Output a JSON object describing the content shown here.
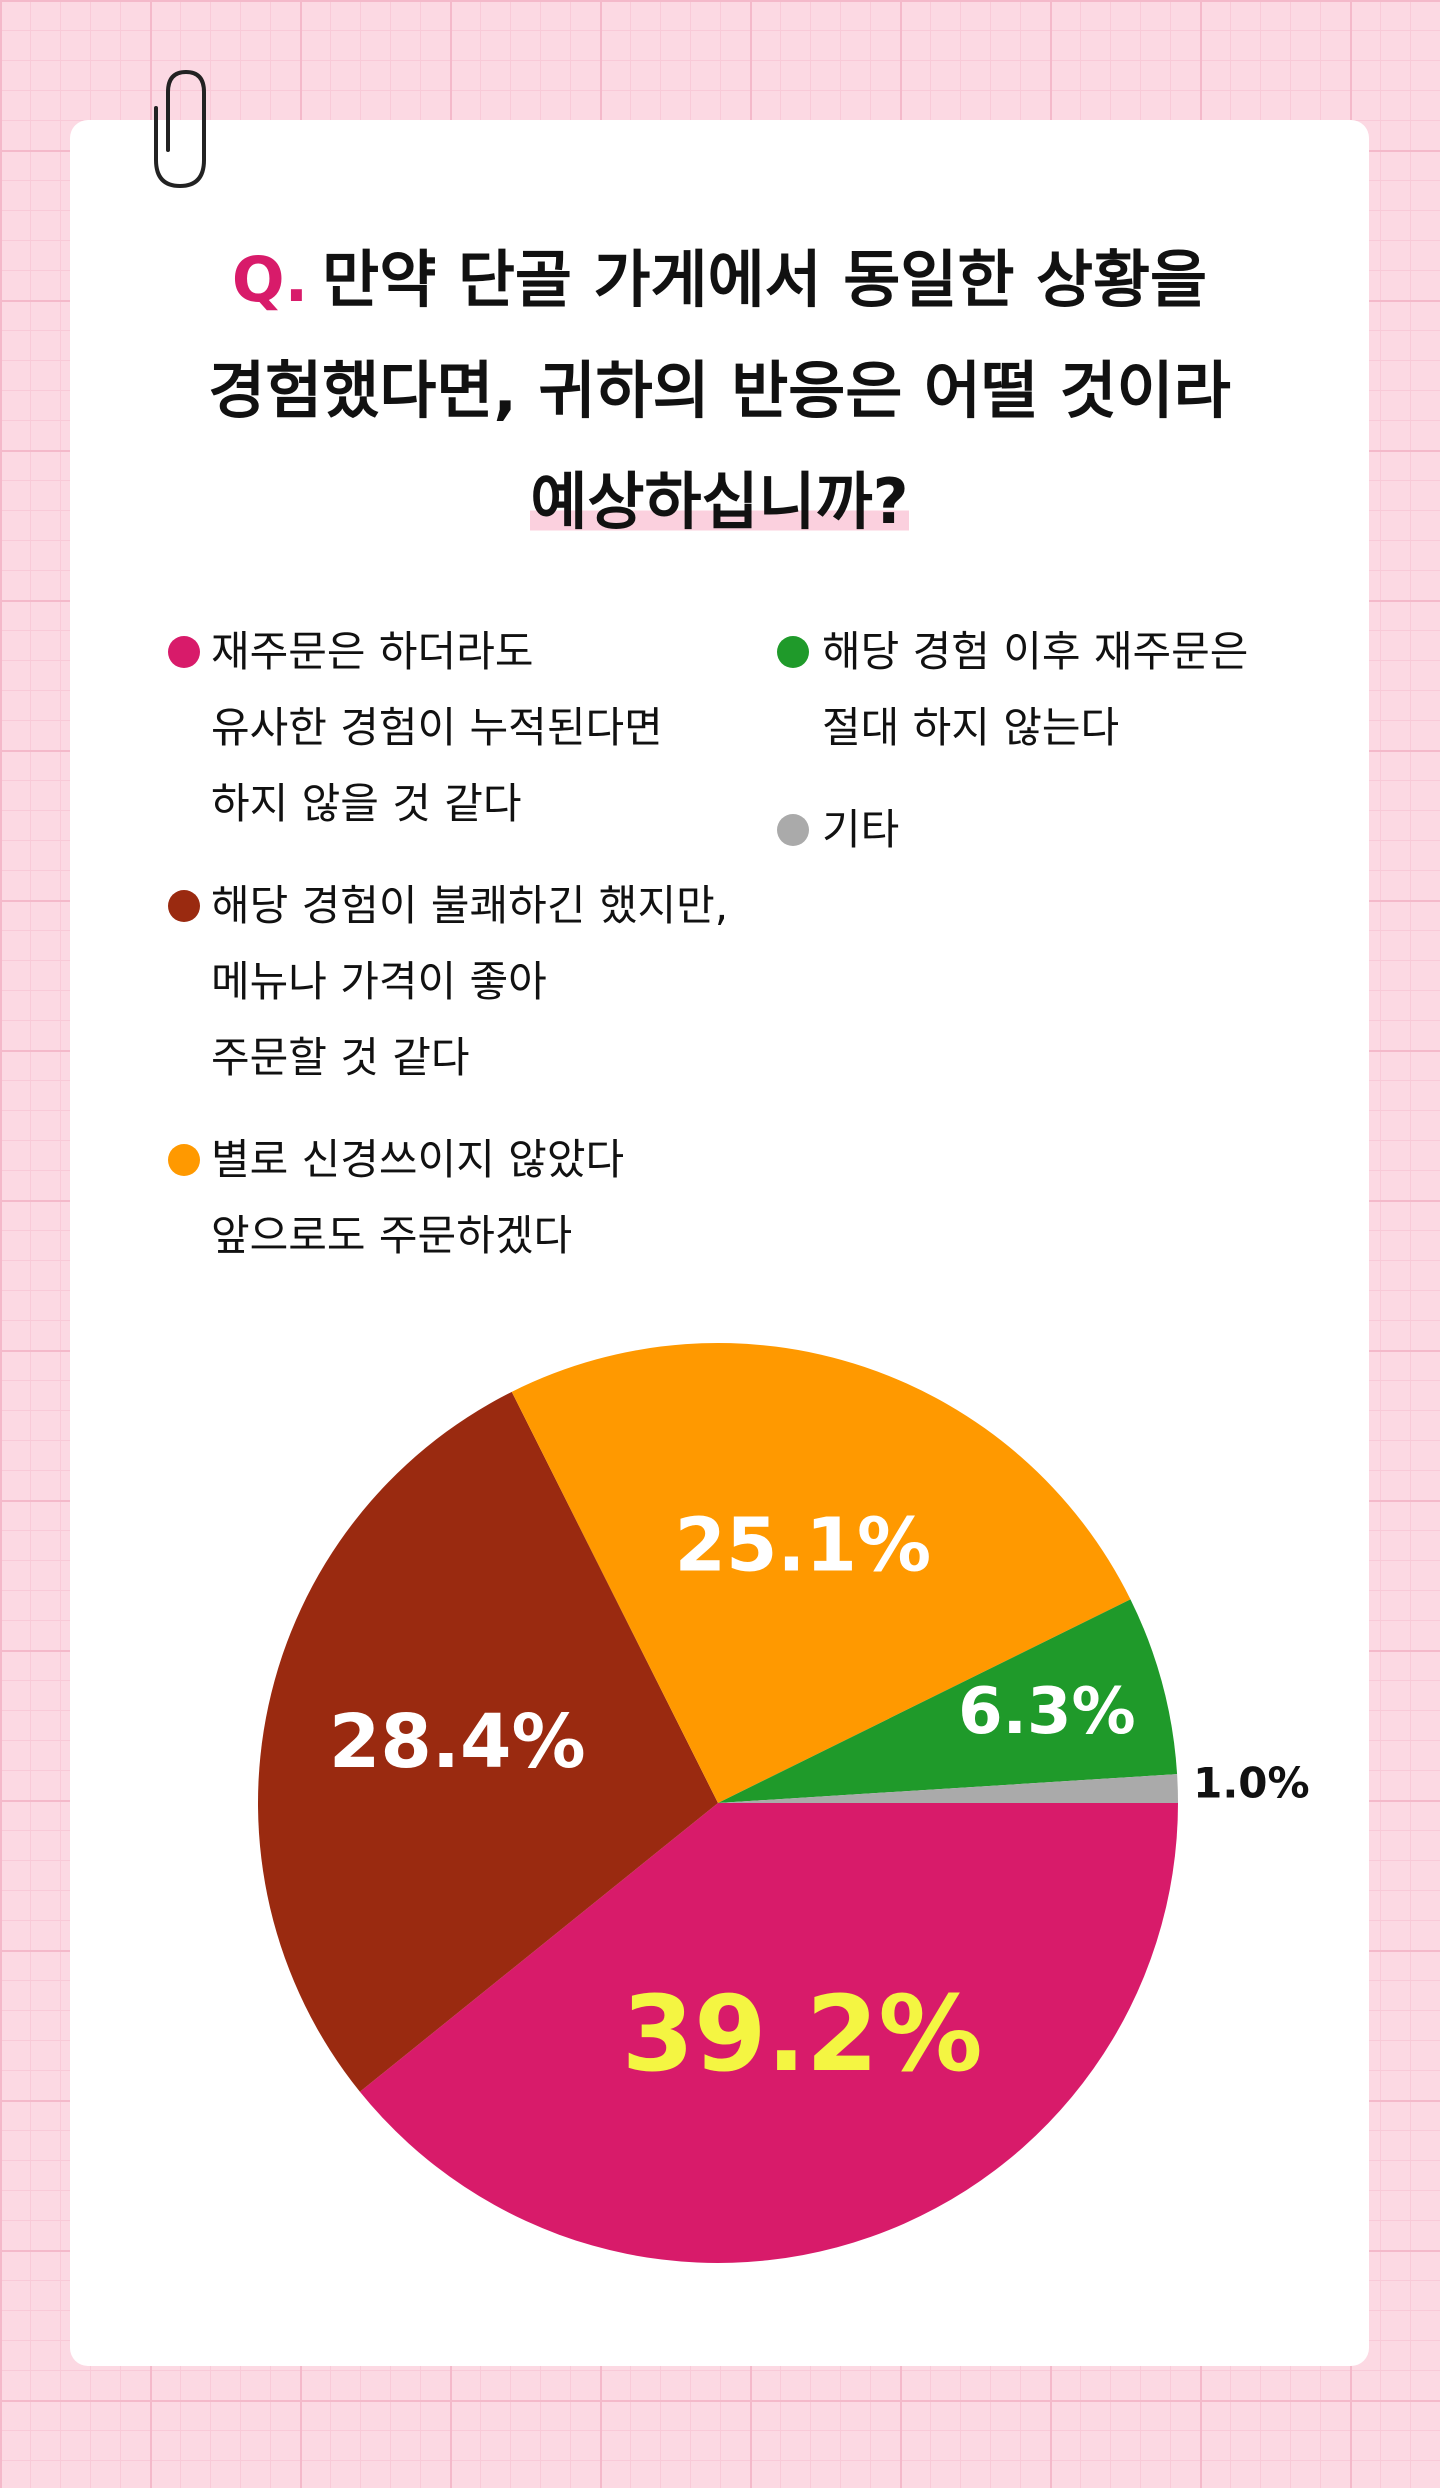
{
  "chart_data": {
    "type": "pie",
    "title_marker": "Q.",
    "title": [
      "만약 단골 가게에서 동일한 상황을",
      "경험했다면, 귀하의 반응은 어떨 것이라",
      "예상하십니까?"
    ],
    "categories": [
      "재주문은 하더라도\n유사한 경험이 누적된다면\n하지 않을 것 같다",
      "해당 경험이 불쾌하긴 했지만,\n메뉴나 가격이 좋아\n주문할 것 같다",
      "별로 신경쓰이지 않았다\n앞으로도 주문하겠다",
      "해당 경험 이후 재주문은\n절대 하지 않는다",
      "기타"
    ],
    "values": [
      39.2,
      28.4,
      25.1,
      6.3,
      1.0
    ],
    "value_labels": [
      "39.2%",
      "28.4%",
      "25.1%",
      "6.3%",
      "1.0%"
    ],
    "colors": [
      "#d81b6a",
      "#9a2a10",
      "#ff9900",
      "#1f9a2a",
      "#aaaaaa"
    ]
  }
}
